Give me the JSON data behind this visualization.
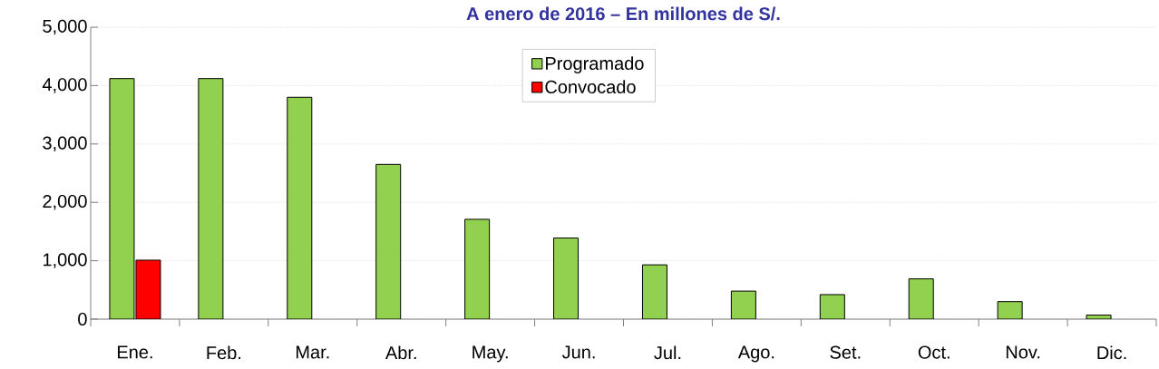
{
  "chart_data": {
    "type": "bar",
    "title": "A enero de 2016 – En millones de S/.",
    "categories": [
      "Ene.",
      "Feb.",
      "Mar.",
      "Abr.",
      "May.",
      "Jun.",
      "Jul.",
      "Ago.",
      "Set.",
      "Oct.",
      "Nov.",
      "Dic."
    ],
    "series": [
      {
        "name": "Programado",
        "color": "#92d050",
        "values": [
          4120,
          4120,
          3800,
          2650,
          1710,
          1390,
          930,
          480,
          420,
          690,
          300,
          70
        ]
      },
      {
        "name": "Convocado",
        "color": "#ff0000",
        "values": [
          1010,
          null,
          null,
          null,
          null,
          null,
          null,
          null,
          null,
          null,
          null,
          null
        ]
      }
    ],
    "ylim": [
      0,
      5000
    ],
    "yticks": [
      {
        "value": 0,
        "label": "0"
      },
      {
        "value": 1000,
        "label": "1,000"
      },
      {
        "value": 2000,
        "label": "2,000"
      },
      {
        "value": 3000,
        "label": "3,000"
      },
      {
        "value": 4000,
        "label": "4,000"
      },
      {
        "value": 5000,
        "label": "5,000"
      }
    ],
    "grid": "y",
    "legend": "top"
  }
}
